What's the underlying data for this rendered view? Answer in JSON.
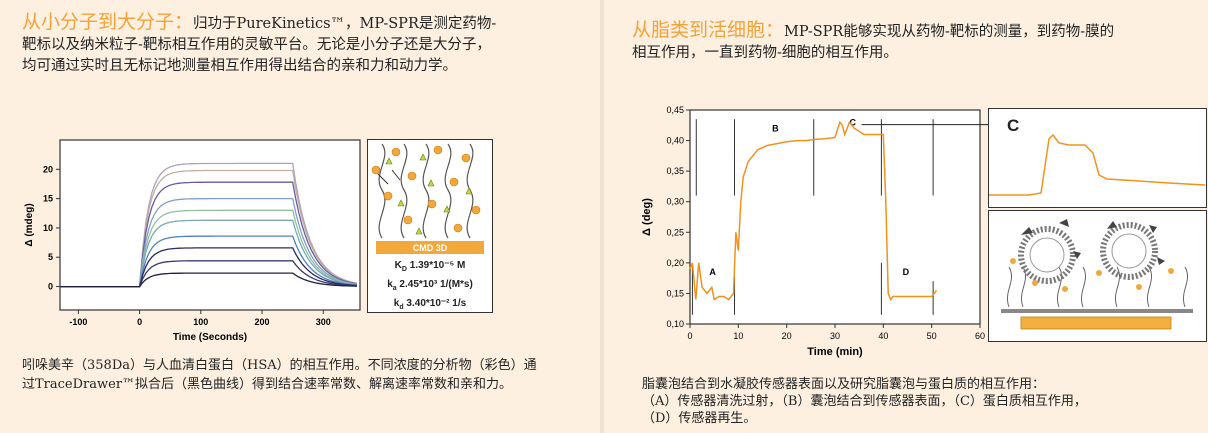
{
  "left": {
    "title_highlight": "从小分子到大分子：",
    "title_line1": "归功于PureKinetics™，MP-SPR是测定药物-",
    "title_line2": "靶标以及纳米粒子-靶标相互作用的灵敏平台。无论是小分子还是大分子，",
    "title_line3": "均可通过实时且无标记地测量相互作用得出结合的亲和力和动力学。",
    "caption_line1": "吲哚美辛（358Da）与人血清白蛋白（HSA）的相互作用。不同浓度的分析物（彩色）通",
    "caption_line2": "过TraceDrawer™拟合后（黑色曲线）得到结合速率常数、解离速率常数和亲和力。",
    "inset_label": "CMD 3D",
    "kd_label": "K",
    "kd_sub": "D",
    "kd_value": " 1.39*10⁻⁵ M",
    "ka_label": "k",
    "ka_sub": "a",
    "ka_value": " 2.45*10³ 1/(M*s)",
    "kdis_label": "k",
    "kdis_sub": "d",
    "kdis_value": " 3.40*10⁻² 1/s"
  },
  "right": {
    "title_highlight": "从脂类到活细胞：",
    "title_line1": "MP-SPR能够实现从药物-靶标的测量，到药物-膜的",
    "title_line2": "相互作用，一直到药物-细胞的相互作用。",
    "caption_line1": "脂囊泡结合到水凝胶传感器表面以及研究脂囊泡与蛋白质的相互作用：",
    "caption_line2": "（A）传感器清洗过射，（B）囊泡结合到传感器表面，（C）蛋白质相互作用，",
    "caption_line3": "（D）传感器再生。",
    "zoom_label": "C"
  },
  "chart_data": [
    {
      "type": "line",
      "title": "",
      "xlabel": "Time (Seconds)",
      "ylabel": "Δ (mdeg)",
      "xlim": [
        -130,
        360
      ],
      "ylim": [
        -4,
        25
      ],
      "xticks": [
        -100,
        0,
        100,
        200,
        300
      ],
      "yticks": [
        0,
        5,
        10,
        15,
        20
      ],
      "series": [
        {
          "color": "#b0a0b8",
          "plateau": 21.0
        },
        {
          "color": "#c0b0a0",
          "plateau": 19.8
        },
        {
          "color": "#6a5aa0",
          "plateau": 17.8
        },
        {
          "color": "#80a0c8",
          "plateau": 15.0
        },
        {
          "color": "#90c0a0",
          "plateau": 13.0
        },
        {
          "color": "#7aa8b0",
          "plateau": 11.3
        },
        {
          "color": "#5080c0",
          "plateau": 8.6
        },
        {
          "color": "#2a2a60",
          "plateau": 6.6
        },
        {
          "color": "#3a3a70",
          "plateau": 4.4
        },
        {
          "color": "#202040",
          "plateau": 2.3
        }
      ]
    },
    {
      "type": "line",
      "title": "",
      "xlabel": "Time (min)",
      "ylabel": "Δ (deg)",
      "xlim": [
        0,
        60
      ],
      "ylim": [
        0.1,
        0.45
      ],
      "xticks": [
        0,
        10,
        20,
        30,
        40,
        50,
        60
      ],
      "yticks": [
        0.1,
        0.15,
        0.2,
        0.25,
        0.3,
        0.35,
        0.4,
        0.45
      ],
      "annotations": [
        "A",
        "B",
        "C",
        "D"
      ],
      "series": [
        {
          "color": "#f0921e",
          "x": [
            0,
            0.5,
            1.2,
            1.8,
            2.5,
            3.5,
            4.5,
            5,
            6,
            7,
            8,
            9,
            9.5,
            10,
            10.5,
            11,
            12,
            14,
            16,
            18,
            20,
            22,
            24,
            26,
            28,
            30,
            31,
            31.5,
            32,
            33,
            34,
            35,
            36,
            37,
            38,
            39,
            40,
            40.5,
            41,
            41.5,
            42,
            44,
            46,
            48,
            50,
            50.5,
            51
          ],
          "y": [
            0.19,
            0.2,
            0.14,
            0.2,
            0.16,
            0.15,
            0.16,
            0.14,
            0.145,
            0.145,
            0.14,
            0.15,
            0.25,
            0.22,
            0.3,
            0.34,
            0.365,
            0.385,
            0.392,
            0.395,
            0.398,
            0.4,
            0.4,
            0.402,
            0.403,
            0.405,
            0.43,
            0.425,
            0.41,
            0.43,
            0.42,
            0.415,
            0.41,
            0.41,
            0.41,
            0.41,
            0.41,
            0.3,
            0.15,
            0.14,
            0.145,
            0.145,
            0.145,
            0.145,
            0.145,
            0.15,
            0.155
          ]
        }
      ]
    }
  ]
}
